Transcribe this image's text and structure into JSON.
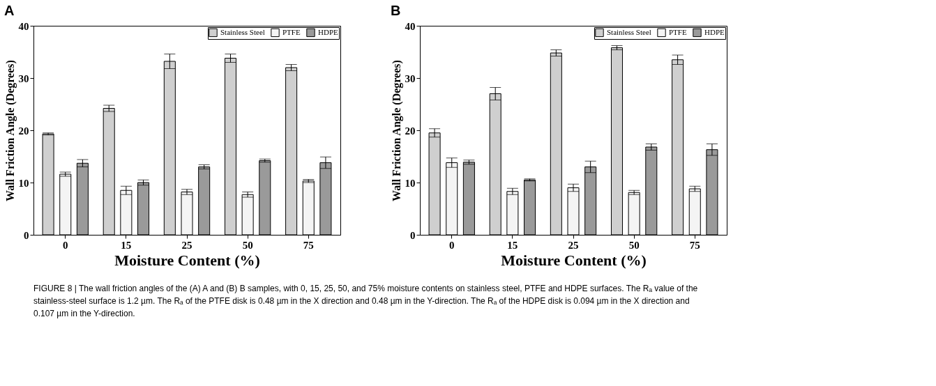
{
  "chart_data": [
    {
      "type": "bar",
      "title": "A",
      "xlabel": "Moisture Content (%)",
      "ylabel": "Wall Friction Angle (Degrees)",
      "categories": [
        "0",
        "15",
        "25",
        "50",
        "75"
      ],
      "ylim": [
        0,
        40
      ],
      "yticks": [
        0,
        10,
        20,
        30,
        40
      ],
      "legend": "top right",
      "grid": false,
      "series": [
        {
          "name": "Stainless Steel",
          "color": "#cfcfcf",
          "values": [
            19.3,
            24.2,
            33.2,
            33.8,
            32.0
          ],
          "errors": [
            0.2,
            0.6,
            1.4,
            0.8,
            0.6
          ]
        },
        {
          "name": "PTFE",
          "color": "#f4f4f4",
          "values": [
            11.6,
            8.5,
            8.2,
            7.7,
            10.3
          ],
          "errors": [
            0.4,
            0.8,
            0.5,
            0.5,
            0.3
          ]
        },
        {
          "name": "HDPE",
          "color": "#9a9a9a",
          "values": [
            13.7,
            10.0,
            13.0,
            14.2,
            13.8
          ],
          "errors": [
            0.7,
            0.5,
            0.4,
            0.3,
            1.1
          ]
        }
      ],
      "annotations": [
        "FIGURE 8 | The wall friction angles of the (A) A and (B) B samples, with 0, 15, 25, 50, and 75% moisture contents on stainless steel, PTFE and HDPE surfaces. The Rₐ value of the stainless-steel surface is 1.2 µm. The Rₐ of the PTFE disk is 0.48 µm in the X direction and 0.48 µm in the Y-direction. The Rₐ of the HDPE disk is 0.094 µm in the X direction and 0.107 µm in the Y-direction."
      ]
    },
    {
      "type": "bar",
      "title": "B",
      "xlabel": "Moisture Content (%)",
      "ylabel": "Wall Friction Angle (Degrees)",
      "categories": [
        "0",
        "15",
        "25",
        "50",
        "75"
      ],
      "ylim": [
        0,
        40
      ],
      "yticks": [
        0,
        10,
        20,
        30,
        40
      ],
      "legend": "top right",
      "grid": false,
      "series": [
        {
          "name": "Stainless Steel",
          "color": "#cfcfcf",
          "values": [
            19.5,
            27.0,
            34.8,
            35.8,
            33.5
          ],
          "errors": [
            0.8,
            1.2,
            0.6,
            0.4,
            0.9
          ]
        },
        {
          "name": "PTFE",
          "color": "#f4f4f4",
          "values": [
            13.8,
            8.3,
            9.0,
            8.1,
            8.8
          ],
          "errors": [
            0.9,
            0.6,
            0.7,
            0.4,
            0.5
          ]
        },
        {
          "name": "HDPE",
          "color": "#9a9a9a",
          "values": [
            13.9,
            10.5,
            13.0,
            16.8,
            16.3
          ],
          "errors": [
            0.4,
            0.2,
            1.1,
            0.6,
            1.1
          ]
        }
      ]
    }
  ]
}
